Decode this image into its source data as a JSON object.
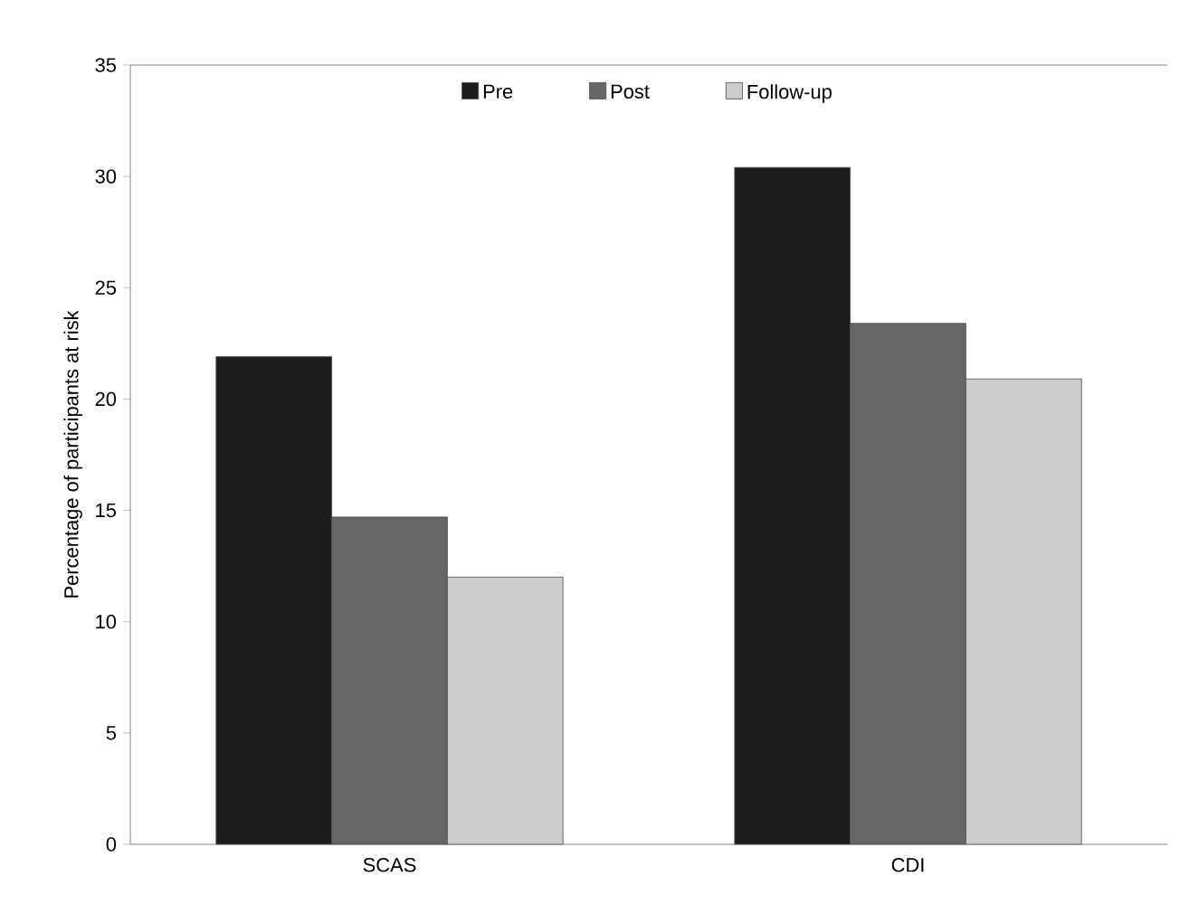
{
  "chart_data": {
    "type": "bar",
    "ylabel": "Percentage of participants at risk",
    "categories": [
      "SCAS",
      "CDI"
    ],
    "series": [
      {
        "name": "Pre",
        "color": "#1c1c1c",
        "values": [
          21.9,
          30.4
        ]
      },
      {
        "name": "Post",
        "color": "#666666",
        "values": [
          14.7,
          23.4
        ]
      },
      {
        "name": "Follow-up",
        "color": "#cccccc",
        "values": [
          12.0,
          20.9
        ]
      }
    ],
    "ylim": [
      0,
      35
    ],
    "yticks": [
      0,
      5,
      10,
      15,
      20,
      25,
      30,
      35
    ],
    "legend": "top"
  }
}
